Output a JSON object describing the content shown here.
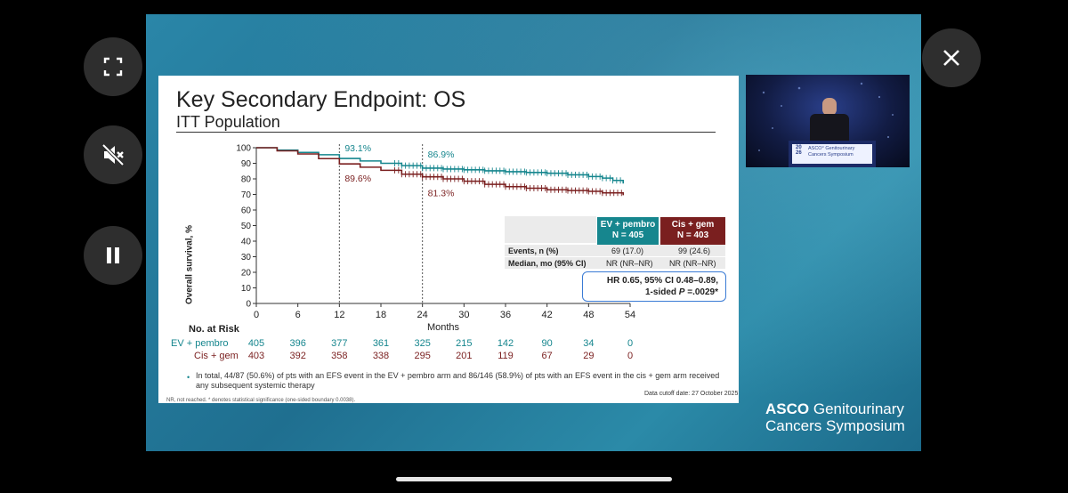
{
  "controls": {
    "fullscreen_icon": "fullscreen-icon",
    "mute_icon": "mute-icon",
    "pause_icon": "pause-icon",
    "close_icon": "close-icon"
  },
  "slide": {
    "title": "Key Secondary Endpoint: OS",
    "subtitle": "ITT Population",
    "table": {
      "col1_head": [
        "EV + pembro",
        "N = 405"
      ],
      "col2_head": [
        "Cis + gem",
        "N = 403"
      ],
      "rows": [
        {
          "label": "Events, n (%)",
          "ev": "69 (17.0)",
          "cg": "99 (24.6)"
        },
        {
          "label": "Median, mo (95% CI)",
          "ev": "NR (NR–NR)",
          "cg": "NR (NR–NR)"
        }
      ]
    },
    "hr_line1": "HR 0.65, 95% CI 0.48–0.89,",
    "hr_line2_prefix": "1-sided ",
    "hr_line2_p": "P",
    "hr_line2_suffix": " =.0029*",
    "risk": {
      "title": "No. at Risk",
      "ev_label": "EV + pembro",
      "cg_label": "Cis + gem",
      "ev_values": [
        "405",
        "396",
        "377",
        "361",
        "325",
        "215",
        "142",
        "90",
        "34",
        "0"
      ],
      "cg_values": [
        "403",
        "392",
        "358",
        "338",
        "295",
        "201",
        "119",
        "67",
        "29",
        "0"
      ]
    },
    "footnote_bullet": "•",
    "footnote": "In total, 44/87 (50.6%) of pts with an EFS event in the EV + pembro arm and 86/146 (58.9%) of pts with an EFS event in the cis + gem arm received any subsequent systemic therapy",
    "cutoff": "Data cutoff date: 27 October 2025",
    "nr_note": "NR, not reached. * denotes statistical significance (one-sided boundary 0.0038).",
    "logo_line1_bold": "ASCO",
    "logo_line1_rest": " Genitourinary",
    "logo_line2": "Cancers Symposium"
  },
  "speaker_sign": {
    "year_top": "20",
    "year_bottom": "26",
    "line1": "ASCO° Genitourinary",
    "line2": "Cancers Symposium"
  },
  "chart_data": {
    "type": "line",
    "title": "",
    "xlabel": "Months",
    "ylabel": "Overall survival, %",
    "xlim": [
      0,
      54
    ],
    "ylim": [
      0,
      100
    ],
    "xticks": [
      "0",
      "6",
      "12",
      "18",
      "24",
      "30",
      "36",
      "42",
      "48",
      "54"
    ],
    "yticks": [
      "0",
      "10",
      "20",
      "30",
      "40",
      "50",
      "60",
      "70",
      "80",
      "90",
      "100"
    ],
    "annotations": [
      {
        "text": "93.1%",
        "x": 12,
        "series": "EV + pembro"
      },
      {
        "text": "89.6%",
        "x": 12,
        "series": "Cis + gem"
      },
      {
        "text": "86.9%",
        "x": 24,
        "series": "EV + pembro"
      },
      {
        "text": "81.3%",
        "x": 24,
        "series": "Cis + gem"
      }
    ],
    "series": [
      {
        "name": "EV + pembro",
        "color": "#16868e",
        "x": [
          0,
          3,
          6,
          9,
          12,
          15,
          18,
          21,
          24,
          27,
          30,
          33,
          36,
          39,
          42,
          45,
          48,
          50,
          51.5,
          53
        ],
        "y": [
          100,
          98.5,
          97,
          95.5,
          93.1,
          91.5,
          90,
          88.5,
          86.9,
          86.3,
          85.8,
          85.2,
          84.6,
          84.1,
          83.6,
          82.6,
          81.5,
          80.5,
          79,
          77
        ]
      },
      {
        "name": "Cis + gem",
        "color": "#7a1f1f",
        "x": [
          0,
          3,
          6,
          9,
          12,
          15,
          18,
          21,
          24,
          27,
          30,
          33,
          36,
          39,
          42,
          45,
          48,
          50,
          53
        ],
        "y": [
          100,
          98,
          96,
          93,
          89.6,
          87.5,
          85.5,
          83,
          81.3,
          80,
          78.5,
          76.5,
          75,
          74,
          73,
          72.5,
          72,
          71,
          69.5
        ]
      }
    ],
    "vlines": [
      12,
      24
    ]
  }
}
